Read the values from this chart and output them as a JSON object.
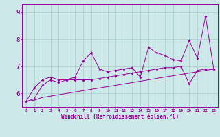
{
  "xlabel": "Windchill (Refroidissement éolien,°C)",
  "x": [
    0,
    1,
    2,
    3,
    4,
    5,
    6,
    7,
    8,
    9,
    10,
    11,
    12,
    13,
    14,
    15,
    16,
    17,
    18,
    19,
    20,
    21,
    22,
    23
  ],
  "line1": [
    5.7,
    6.2,
    6.5,
    6.6,
    6.5,
    6.5,
    6.6,
    7.2,
    7.5,
    6.9,
    6.8,
    6.85,
    6.9,
    6.95,
    6.6,
    7.7,
    7.5,
    7.4,
    7.25,
    7.2,
    7.95,
    7.3,
    8.85,
    6.9
  ],
  "line2": [
    5.7,
    5.8,
    6.3,
    6.5,
    6.4,
    6.5,
    6.5,
    6.5,
    6.5,
    6.55,
    6.6,
    6.65,
    6.7,
    6.75,
    6.8,
    6.85,
    6.9,
    6.95,
    6.95,
    7.0,
    6.35,
    6.85,
    6.9,
    6.9
  ],
  "line3": [
    5.7,
    5.75,
    5.85,
    5.9,
    5.95,
    6.0,
    6.05,
    6.1,
    6.15,
    6.2,
    6.25,
    6.3,
    6.35,
    6.4,
    6.45,
    6.5,
    6.55,
    6.6,
    6.65,
    6.7,
    6.75,
    6.8,
    6.85,
    6.9
  ],
  "line_color": "#990099",
  "bg_color": "#cce8e8",
  "grid_color": "#aacccc",
  "ylim": [
    5.5,
    9.3
  ],
  "yticks": [
    6,
    7,
    8,
    9
  ],
  "xlim": [
    -0.5,
    23.5
  ]
}
